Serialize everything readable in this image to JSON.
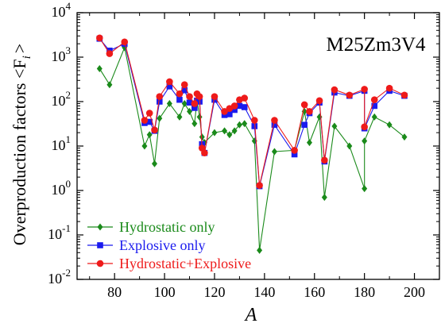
{
  "chart_data": {
    "type": "line",
    "ylabel": "Overproduction factors <F",
    "ylabel_sub": "i",
    "ylabel_end": ">",
    "xlabel": "A",
    "annotation": "M25Zm3V4",
    "xlim": [
      65,
      210
    ],
    "ylim": [
      0.01,
      10000
    ],
    "y_scale": "log",
    "grid": false,
    "legend_position": "bottom-left",
    "x_ticks": [
      80,
      100,
      120,
      140,
      160,
      180,
      200
    ],
    "x_tick_labels": [
      "80",
      "100",
      "120",
      "140",
      "160",
      "180",
      "200"
    ],
    "y_ticks": [
      0.01,
      0.1,
      1,
      10,
      100,
      1000,
      10000
    ],
    "y_tick_labels": [
      {
        "base": "10",
        "exp": "-2"
      },
      {
        "base": "10",
        "exp": "-1"
      },
      {
        "base": "10",
        "exp": "0"
      },
      {
        "base": "10",
        "exp": "1"
      },
      {
        "base": "10",
        "exp": "2"
      },
      {
        "base": "10",
        "exp": "3"
      },
      {
        "base": "10",
        "exp": "4"
      }
    ],
    "series": [
      {
        "name": "Hydrostatic only",
        "color": "#1a8a1a",
        "marker": "diamond",
        "x": [
          74,
          78,
          84,
          92,
          94,
          96,
          98,
          102,
          106,
          108,
          110,
          112,
          113,
          114,
          115,
          116,
          120,
          124,
          126,
          128,
          130,
          132,
          136,
          138,
          144,
          152,
          156,
          158,
          162,
          164,
          168,
          174,
          180,
          180,
          184,
          190,
          196
        ],
        "values": [
          550,
          240,
          1650,
          10,
          18,
          4,
          42,
          90,
          45,
          90,
          60,
          32,
          110,
          45,
          16,
          12,
          20,
          22,
          18,
          22,
          30,
          32,
          13,
          0.045,
          7.5,
          8,
          60,
          12,
          45,
          0.7,
          28,
          10,
          1.1,
          13,
          45,
          30,
          16
        ]
      },
      {
        "name": "Explosive only",
        "color": "#1a1aee",
        "marker": "square",
        "x": [
          74,
          78,
          84,
          92,
          94,
          96,
          98,
          102,
          106,
          108,
          110,
          112,
          113,
          114,
          115,
          116,
          120,
          124,
          126,
          128,
          130,
          132,
          136,
          138,
          144,
          152,
          156,
          158,
          162,
          164,
          168,
          174,
          180,
          180,
          184,
          190,
          196
        ],
        "values": [
          2600,
          1400,
          2000,
          33,
          35,
          22,
          100,
          220,
          110,
          180,
          95,
          72,
          105,
          100,
          11,
          7,
          110,
          50,
          52,
          65,
          80,
          75,
          28,
          1.25,
          30,
          6.5,
          30,
          55,
          95,
          4.5,
          160,
          135,
          175,
          25,
          80,
          175,
          135
        ]
      },
      {
        "name": "Hydrostatic+Explosive",
        "color": "#ee1a1a",
        "marker": "circle",
        "x": [
          74,
          78,
          84,
          92,
          94,
          96,
          98,
          102,
          106,
          108,
          110,
          112,
          113,
          114,
          115,
          116,
          120,
          124,
          126,
          128,
          130,
          132,
          136,
          138,
          144,
          152,
          156,
          158,
          162,
          164,
          168,
          174,
          180,
          180,
          184,
          190,
          196
        ],
        "values": [
          2700,
          1200,
          2200,
          38,
          55,
          23,
          130,
          280,
          150,
          240,
          130,
          90,
          150,
          130,
          9,
          7,
          130,
          60,
          70,
          80,
          110,
          120,
          38,
          1.3,
          38,
          8,
          85,
          60,
          105,
          4.8,
          185,
          140,
          190,
          27,
          110,
          200,
          140
        ]
      }
    ]
  }
}
